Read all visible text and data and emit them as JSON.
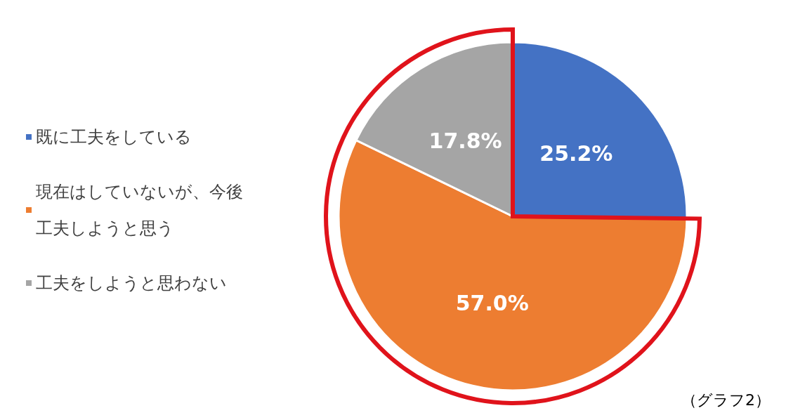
{
  "chart_data": {
    "type": "pie",
    "categories": [
      "既に工夫をしている",
      "現在はしていないが、今後工夫しようと思う",
      "工夫をしようと思わない"
    ],
    "values": [
      25.2,
      57.0,
      17.8
    ],
    "colors": [
      "#4472c4",
      "#ed7d31",
      "#a5a5a5"
    ],
    "value_labels": [
      "25.2%",
      "57.0%",
      "17.8%"
    ],
    "legend": "left",
    "annotations": [
      "（グラフ2）"
    ]
  }
}
